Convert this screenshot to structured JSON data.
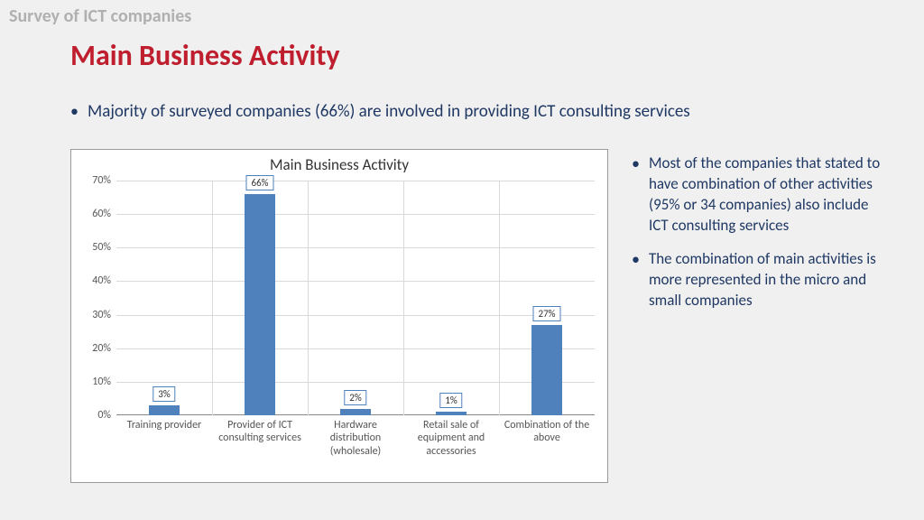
{
  "header": "Survey of ICT companies",
  "title": "Main Business Activity",
  "top_bullet": "Majority of surveyed companies (66%) are involved in providing ICT consulting services",
  "side_bullets": [
    "Most of the companies that stated to have combination of other activities (95% or 34 companies) also include ICT consulting services",
    "The combination of main activities is more represented in the micro and small companies"
  ],
  "chart": {
    "type": "bar",
    "title": "Main Business Activity",
    "categories": [
      "Training provider",
      "Provider of ICT consulting services",
      "Hardware distribution (wholesale)",
      "Retail sale of equipment and accessories",
      "Combination of the above"
    ],
    "values": [
      3,
      66,
      2,
      1,
      27
    ],
    "value_labels": [
      "3%",
      "66%",
      "2%",
      "1%",
      "27%"
    ],
    "bar_color": "#4f81bd",
    "ylim": [
      0,
      70
    ],
    "ytick_step": 10,
    "y_tick_labels": [
      "0%",
      "10%",
      "20%",
      "30%",
      "40%",
      "50%",
      "60%",
      "70%"
    ],
    "background_color": "#ffffff",
    "grid_color": "#d9d9d9",
    "title_fontsize": 17,
    "label_fontsize": 12
  },
  "colors": {
    "page_bg": "#f0f0f0",
    "header_gray": "#b0b0b0",
    "title_red": "#be1e2d",
    "body_navy": "#1f3864"
  }
}
